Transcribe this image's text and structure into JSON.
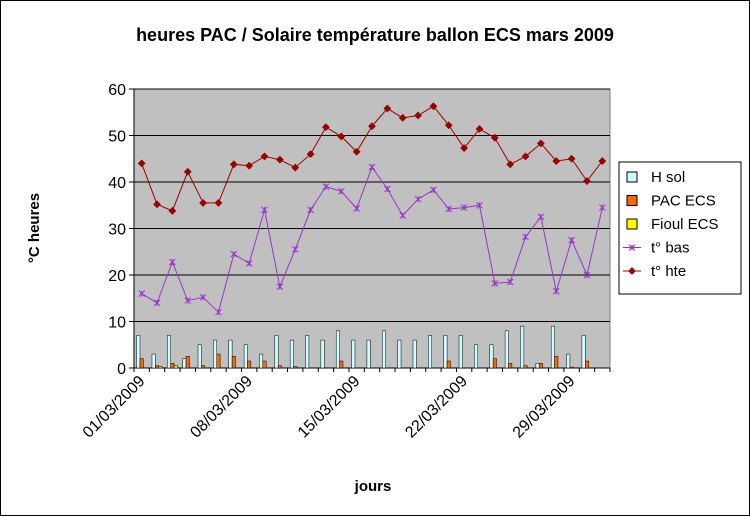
{
  "chart_data": {
    "type": "bar+line",
    "title": "heures PAC / Solaire température ballon ECS mars 2009",
    "xlabel": "jours",
    "ylabel": "°C heures",
    "ylim": [
      0,
      60
    ],
    "yticks": [
      "0",
      "10",
      "20",
      "30",
      "40",
      "50",
      "60"
    ],
    "x": [
      "01/03/2009",
      "02/03/2009",
      "03/03/2009",
      "04/03/2009",
      "05/03/2009",
      "06/03/2009",
      "07/03/2009",
      "08/03/2009",
      "09/03/2009",
      "10/03/2009",
      "11/03/2009",
      "12/03/2009",
      "13/03/2009",
      "14/03/2009",
      "15/03/2009",
      "16/03/2009",
      "17/03/2009",
      "18/03/2009",
      "19/03/2009",
      "20/03/2009",
      "21/03/2009",
      "22/03/2009",
      "23/03/2009",
      "24/03/2009",
      "25/03/2009",
      "26/03/2009",
      "27/03/2009",
      "28/03/2009",
      "29/03/2009",
      "30/03/2009",
      "31/03/2009"
    ],
    "xticks": [
      "01/03/2009",
      "08/03/2009",
      "15/03/2009",
      "22/03/2009",
      "29/03/2009"
    ],
    "grid": "horizontal",
    "legend_position": "right",
    "plot_background": "#c0c0c0",
    "series": [
      {
        "name": "H sol",
        "kind": "bar",
        "color": "#ccffff",
        "values": [
          7,
          3,
          7,
          2,
          5,
          6,
          6,
          5,
          3,
          7,
          6,
          7,
          6,
          8,
          6,
          6,
          8,
          6,
          6,
          7,
          7,
          7,
          5,
          5,
          8,
          9,
          1,
          9,
          3,
          7,
          0
        ]
      },
      {
        "name": "PAC ECS",
        "kind": "bar",
        "color": "#ff6600",
        "values": [
          2,
          0.5,
          1,
          2.5,
          0.5,
          3,
          2.5,
          1.5,
          1.5,
          0.5,
          0.3,
          0,
          0,
          1.5,
          0,
          0,
          0,
          0,
          0,
          0,
          1.5,
          0,
          0,
          2,
          1,
          0.5,
          1,
          2.5,
          0.2,
          1.5,
          0
        ]
      },
      {
        "name": "Fioul ECS",
        "kind": "bar",
        "color": "#ffff00",
        "values": [
          0,
          0.3,
          0.5,
          0,
          0,
          0,
          0,
          0,
          0,
          0,
          0,
          0,
          0,
          0,
          0,
          0,
          0,
          0,
          0,
          0,
          0,
          0,
          0,
          0,
          0,
          0,
          0,
          0,
          0,
          0,
          0
        ]
      },
      {
        "name": "t° bas",
        "kind": "line",
        "color": "#9933cc",
        "marker": "star",
        "values": [
          16,
          14,
          22.8,
          14.5,
          15.2,
          12,
          24.5,
          22.5,
          34,
          17.5,
          25.5,
          34,
          39,
          38,
          34.3,
          43.2,
          38.5,
          32.8,
          36.3,
          38.3,
          34.2,
          34.5,
          35,
          18.2,
          18.5,
          28.2,
          32.5,
          16.5,
          27.5,
          20,
          34.5
        ]
      },
      {
        "name": "t° hte",
        "kind": "line",
        "color": "#990000",
        "marker": "diamond",
        "values": [
          44,
          35.2,
          33.8,
          42.2,
          35.5,
          35.5,
          43.8,
          43.5,
          45.5,
          44.8,
          43.1,
          46,
          51.8,
          49.8,
          46.5,
          52,
          55.8,
          53.8,
          54.3,
          56.3,
          52.2,
          47.3,
          51.4,
          49.5,
          43.8,
          45.5,
          48.3,
          44.5,
          45,
          40.2,
          44.5
        ]
      }
    ]
  }
}
